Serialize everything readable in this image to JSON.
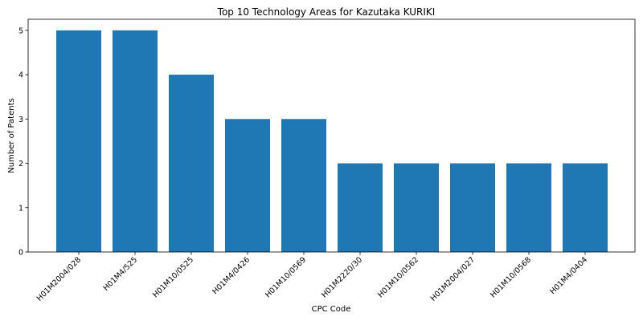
{
  "colors": {
    "bar": "#1f77b4",
    "axis": "#000000",
    "background": "#ffffff"
  },
  "chart_data": {
    "type": "bar",
    "title": "Top 10 Technology Areas for Kazutaka KURIKI",
    "xlabel": "CPC Code",
    "ylabel": "Number of Patents",
    "categories": [
      "H01M2004/028",
      "H01M4/525",
      "H01M10/0525",
      "H01M4/0426",
      "H01M10/0569",
      "H01M2220/30",
      "H01M10/0562",
      "H01M2004/027",
      "H01M10/0568",
      "H01M4/0404"
    ],
    "values": [
      5,
      5,
      4,
      3,
      3,
      2,
      2,
      2,
      2,
      2
    ],
    "ylim": [
      0,
      5.25
    ],
    "yticks": [
      0,
      1,
      2,
      3,
      4,
      5
    ],
    "grid": false,
    "legend": "none"
  }
}
